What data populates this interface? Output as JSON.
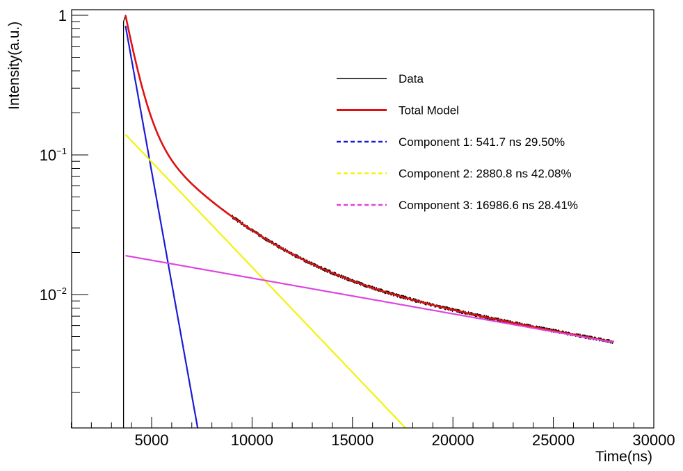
{
  "chart_data": {
    "type": "line",
    "title": "",
    "xlabel": "Time(ns)",
    "ylabel": "Intensity(a.u.)",
    "xscale": "linear",
    "yscale": "log",
    "xlim": [
      0,
      30000
    ],
    "ylim": [
      0.001,
      1.1
    ],
    "x_ticks": [
      5000,
      10000,
      15000,
      20000,
      25000,
      30000
    ],
    "x_tick_labels": [
      "5000",
      "10000",
      "15000",
      "20000",
      "25000",
      "30000"
    ],
    "y_ticks": [
      {
        "value": 1,
        "base": "1",
        "exp": ""
      },
      {
        "value": 0.1,
        "base": "10",
        "exp": "−1"
      },
      {
        "value": 0.01,
        "base": "10",
        "exp": "−2"
      }
    ],
    "legend_position": "top-right",
    "t0": 3700,
    "series": [
      {
        "name": "Data",
        "label": "Data",
        "color": "#000000",
        "style": "solid",
        "kind": "data",
        "x_range": [
          3600,
          28000
        ]
      },
      {
        "name": "Total Model",
        "label": "Total Model",
        "color": "#e01010",
        "style": "solid",
        "kind": "sum",
        "x_range": [
          3700,
          28000
        ]
      },
      {
        "name": "Component 1",
        "label": "Component 1: 541.7 ns 29.50%",
        "color": "#1a1ad6",
        "style": "dashed",
        "kind": "exp",
        "tau": 541.7,
        "fraction": 29.5,
        "amplitude": 0.84,
        "x_range": [
          3700,
          28000
        ]
      },
      {
        "name": "Component 2",
        "label": "Component 2: 2880.8 ns 42.08%",
        "color": "#f2f20a",
        "style": "dashed",
        "kind": "exp",
        "tau": 2880.8,
        "fraction": 42.08,
        "amplitude": 0.14,
        "x_range": [
          3700,
          28000
        ]
      },
      {
        "name": "Component 3",
        "label": "Component 3: 16986.6 ns 28.41%",
        "color": "#dd44dd",
        "style": "dashed",
        "kind": "exp",
        "tau": 16986.6,
        "fraction": 28.41,
        "amplitude": 0.019,
        "x_range": [
          3700,
          28000
        ]
      }
    ]
  }
}
